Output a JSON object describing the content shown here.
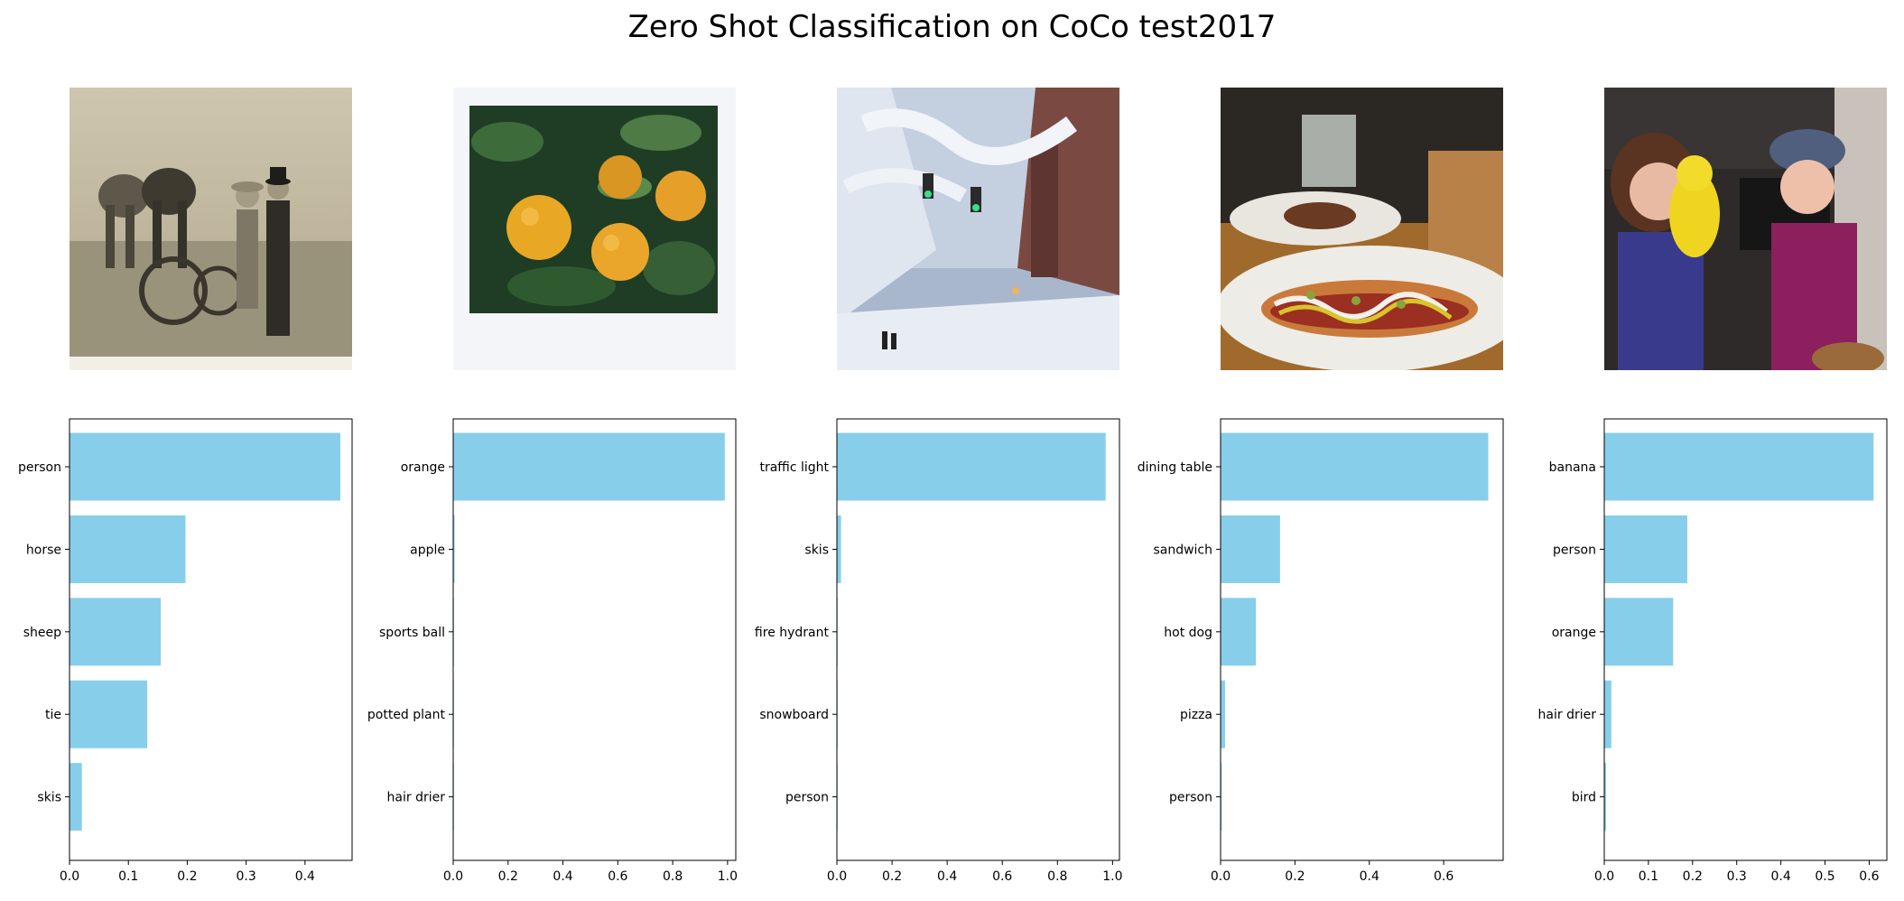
{
  "figure": {
    "title": "Zero Shot Classification on CoCo test2017"
  },
  "colors": {
    "bar": "#87CEEB",
    "axis": "#000000"
  },
  "panels": [
    {
      "image": {
        "subject": "vintage sepia photo of farmers with horses and plow"
      }
    },
    {
      "image": {
        "subject": "oranges on a tree, polaroid"
      }
    },
    {
      "image": {
        "subject": "snowy street with traffic lights"
      }
    },
    {
      "image": {
        "subject": "hot dog on a plate at a restaurant table"
      }
    },
    {
      "image": {
        "subject": "two children with a yellow plush toy"
      }
    }
  ],
  "chart_data": [
    {
      "type": "bar",
      "orientation": "horizontal",
      "categories": [
        "person",
        "horse",
        "sheep",
        "tie",
        "skis"
      ],
      "values": [
        0.46,
        0.197,
        0.155,
        0.132,
        0.021
      ],
      "xlim": [
        0,
        0.48
      ],
      "xticks": [
        0,
        0.1,
        0.2,
        0.3,
        0.4
      ],
      "xticklabels": [
        "0.0",
        "0.1",
        "0.2",
        "0.3",
        "0.4"
      ],
      "grid": false
    },
    {
      "type": "bar",
      "orientation": "horizontal",
      "categories": [
        "orange",
        "apple",
        "sports ball",
        "potted plant",
        "hair drier"
      ],
      "values": [
        0.99,
        0.005,
        0.001,
        0.001,
        0.001
      ],
      "xlim": [
        0,
        1.03
      ],
      "xticks": [
        0,
        0.2,
        0.4,
        0.6,
        0.8,
        1.0
      ],
      "xticklabels": [
        "0.0",
        "0.2",
        "0.4",
        "0.6",
        "0.8",
        "1.0"
      ],
      "grid": false
    },
    {
      "type": "bar",
      "orientation": "horizontal",
      "categories": [
        "traffic light",
        "skis",
        "fire hydrant",
        "snowboard",
        "person"
      ],
      "values": [
        0.975,
        0.015,
        0.002,
        0.001,
        0.001
      ],
      "xlim": [
        0,
        1.025
      ],
      "xticks": [
        0,
        0.2,
        0.4,
        0.6,
        0.8,
        1.0
      ],
      "xticklabels": [
        "0.0",
        "0.2",
        "0.4",
        "0.6",
        "0.8",
        "1.0"
      ],
      "grid": false
    },
    {
      "type": "bar",
      "orientation": "horizontal",
      "categories": [
        "dining table",
        "sandwich",
        "hot dog",
        "pizza",
        "person"
      ],
      "values": [
        0.72,
        0.16,
        0.095,
        0.012,
        0.003
      ],
      "xlim": [
        0,
        0.76
      ],
      "xticks": [
        0,
        0.2,
        0.4,
        0.6
      ],
      "xticklabels": [
        "0.0",
        "0.2",
        "0.4",
        "0.6"
      ],
      "grid": false
    },
    {
      "type": "bar",
      "orientation": "horizontal",
      "categories": [
        "banana",
        "person",
        "orange",
        "hair drier",
        "bird"
      ],
      "values": [
        0.61,
        0.188,
        0.156,
        0.016,
        0.004
      ],
      "xlim": [
        0,
        0.64
      ],
      "xticks": [
        0,
        0.1,
        0.2,
        0.3,
        0.4,
        0.5,
        0.6
      ],
      "xticklabels": [
        "0.0",
        "0.1",
        "0.2",
        "0.3",
        "0.4",
        "0.5",
        "0.6"
      ],
      "grid": false
    }
  ]
}
